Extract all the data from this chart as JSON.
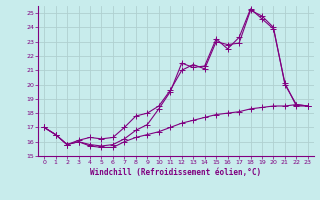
{
  "xlabel": "Windchill (Refroidissement éolien,°C)",
  "bg_color": "#c8ecec",
  "line_color": "#800080",
  "grid_color": "#b0d0d0",
  "xlim": [
    -0.5,
    23.5
  ],
  "ylim": [
    15,
    25.5
  ],
  "xticks": [
    0,
    1,
    2,
    3,
    4,
    5,
    6,
    7,
    8,
    9,
    10,
    11,
    12,
    13,
    14,
    15,
    16,
    17,
    18,
    19,
    20,
    21,
    22,
    23
  ],
  "yticks": [
    15,
    16,
    17,
    18,
    19,
    20,
    21,
    22,
    23,
    24,
    25
  ],
  "line1_x": [
    0,
    1,
    2,
    3,
    4,
    5,
    6,
    7,
    8,
    9,
    10,
    11,
    12,
    13,
    14,
    15,
    16,
    17,
    18,
    19,
    20,
    21,
    22,
    23
  ],
  "line1_y": [
    17.0,
    16.5,
    15.8,
    16.0,
    15.7,
    15.6,
    15.6,
    16.0,
    16.3,
    16.5,
    16.7,
    17.0,
    17.3,
    17.5,
    17.7,
    17.9,
    18.0,
    18.1,
    18.3,
    18.4,
    18.5,
    18.5,
    18.6,
    18.5
  ],
  "line2_x": [
    0,
    1,
    2,
    3,
    4,
    5,
    6,
    7,
    8,
    9,
    10,
    11,
    12,
    13,
    14,
    15,
    16,
    17,
    18,
    19,
    20,
    21,
    22,
    23
  ],
  "line2_y": [
    17.0,
    16.5,
    15.8,
    16.0,
    15.8,
    15.7,
    15.8,
    16.2,
    16.8,
    17.2,
    18.3,
    19.5,
    21.5,
    21.2,
    21.3,
    23.2,
    22.5,
    23.3,
    25.3,
    24.6,
    23.9,
    20.1,
    18.5,
    18.5
  ],
  "line3_x": [
    0,
    1,
    2,
    3,
    4,
    5,
    6,
    7,
    8,
    9,
    10,
    11,
    12,
    13,
    14,
    15,
    16,
    17,
    18,
    19,
    20,
    21,
    22,
    23
  ],
  "line3_y": [
    17.0,
    16.5,
    15.8,
    16.1,
    16.3,
    16.2,
    16.3,
    17.0,
    17.8,
    18.0,
    18.5,
    19.6,
    21.0,
    21.4,
    21.1,
    23.0,
    22.8,
    22.9,
    25.2,
    24.8,
    24.0,
    20.0,
    18.6,
    18.5
  ]
}
